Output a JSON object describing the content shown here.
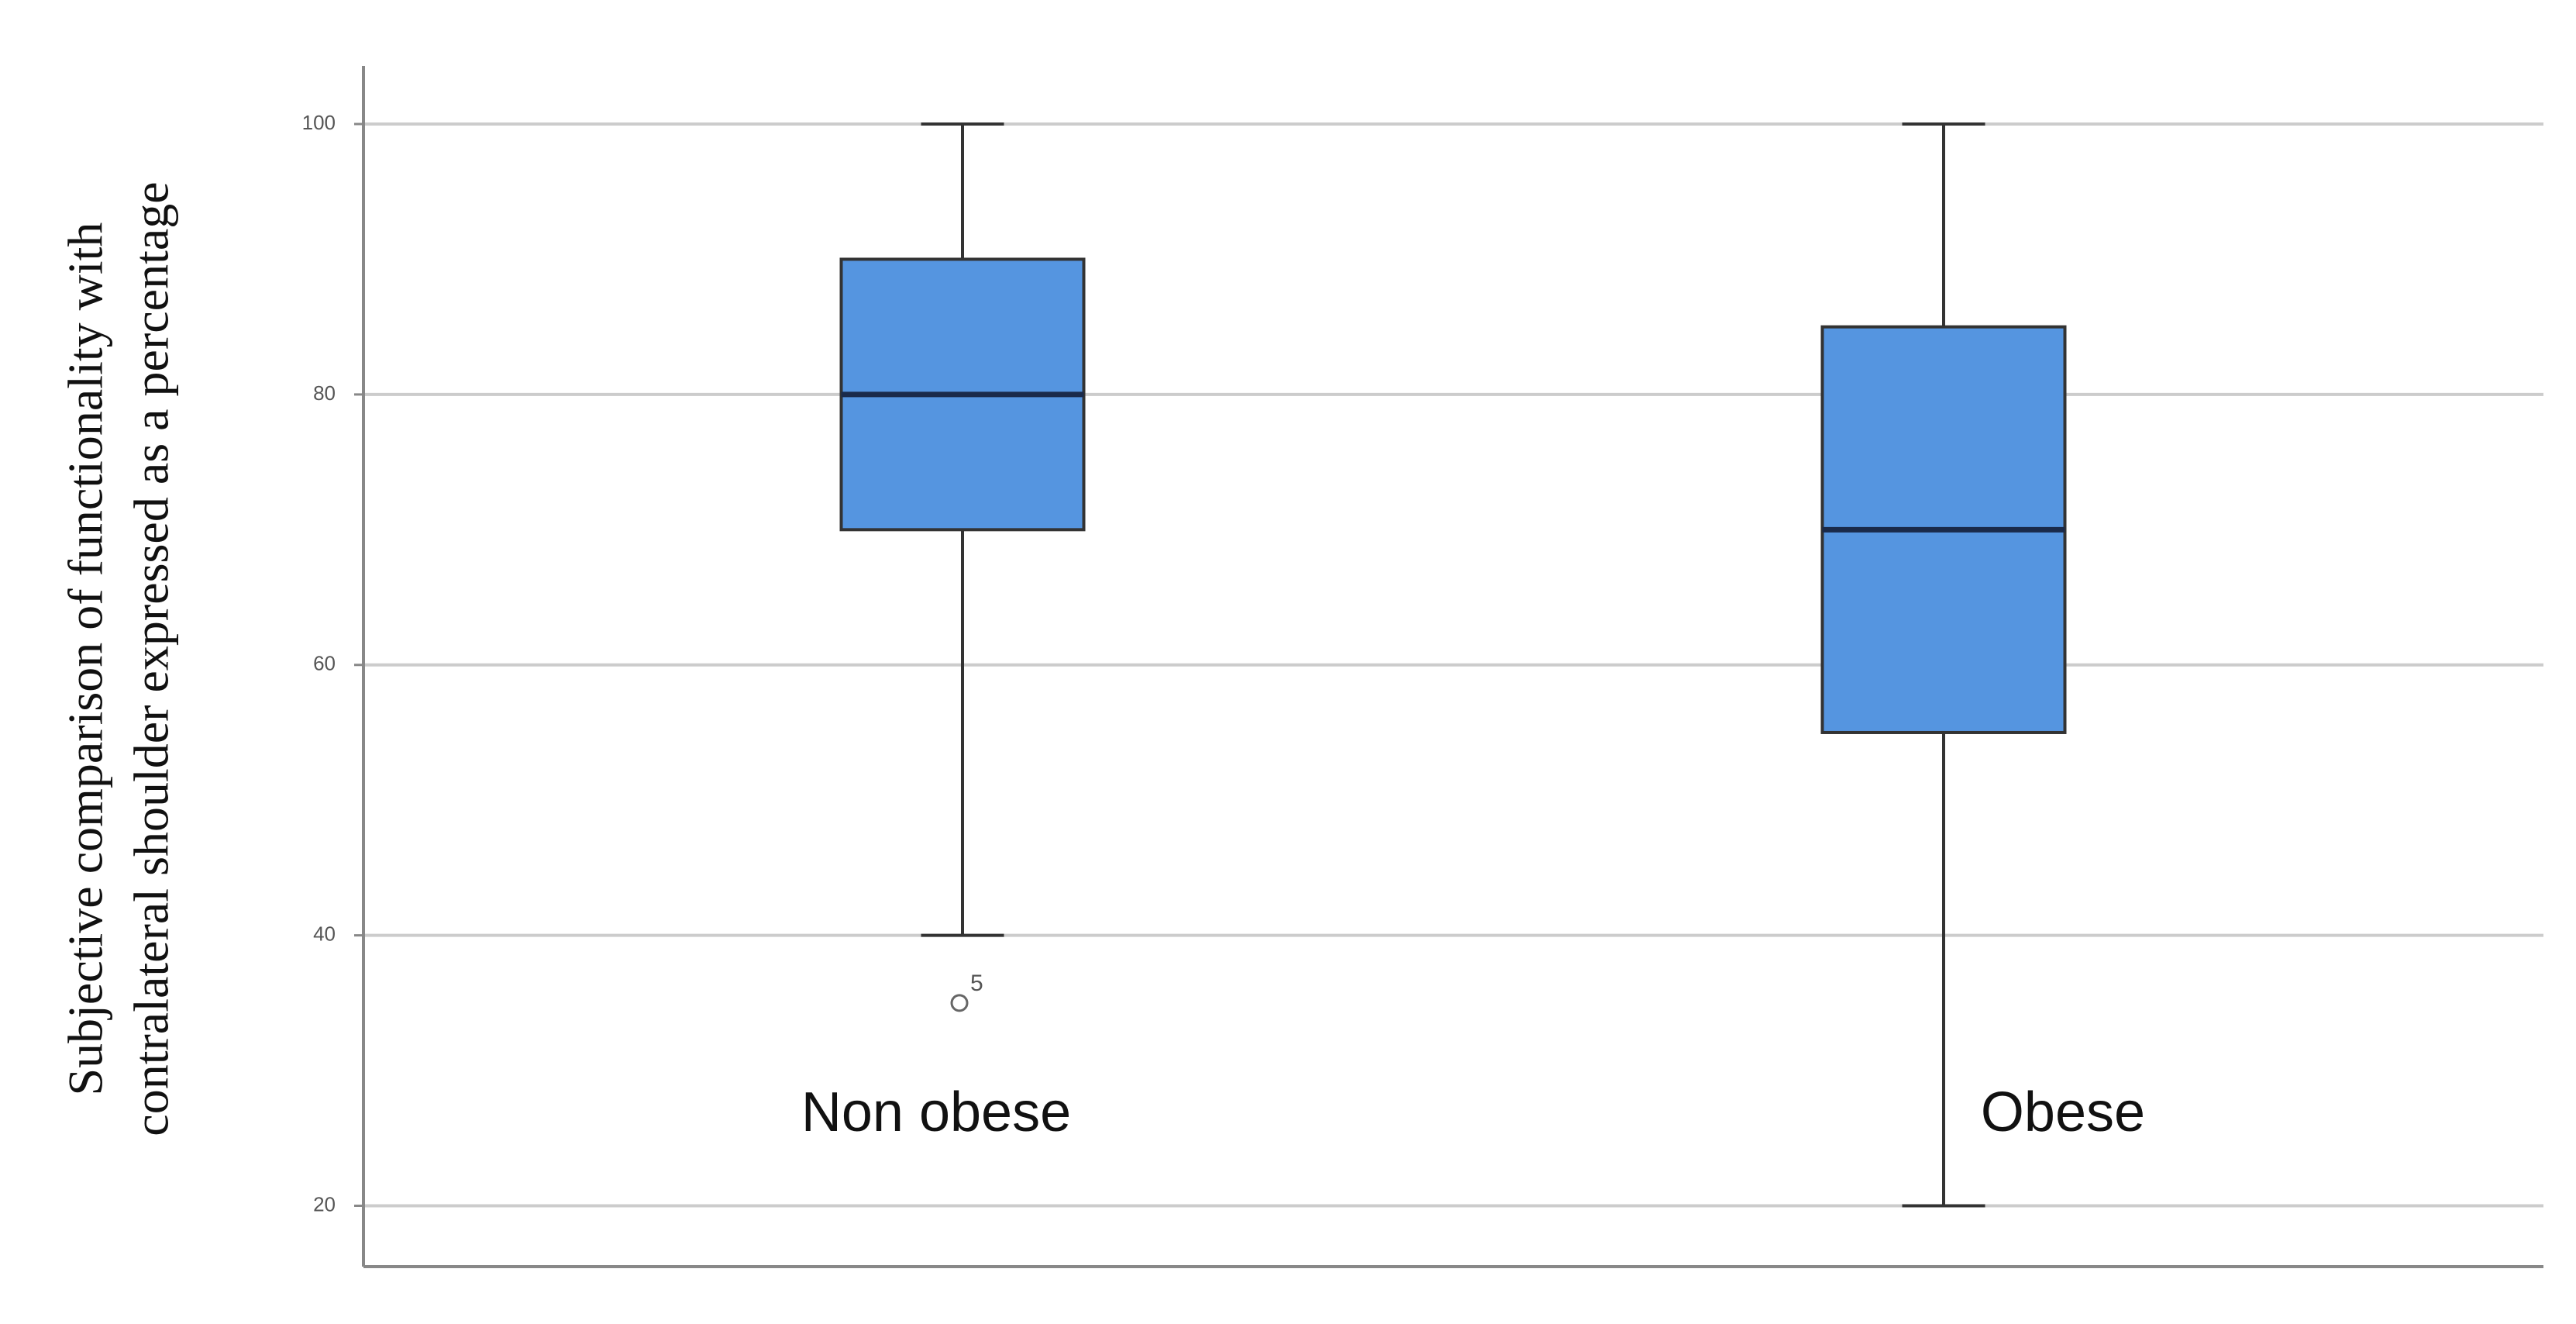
{
  "chart_data": {
    "type": "box",
    "y_label": [
      "Subjective comparison of functionality with",
      "contralateral shoulder expressed as a percentage"
    ],
    "categories": [
      "Non obese",
      "Obese"
    ],
    "boxes": [
      {
        "min": 40,
        "q1": 70,
        "median": 80,
        "q3": 90,
        "max": 100,
        "outliers": [
          {
            "value": 35,
            "label": "5"
          }
        ]
      },
      {
        "min": 20,
        "q1": 55,
        "median": 70,
        "q3": 85,
        "max": 100,
        "outliers": []
      }
    ],
    "color": "#5595e0",
    "median_color": "#1a2a4a",
    "ylim": [
      15.5,
      104.3
    ],
    "yticks": [
      20,
      40,
      60,
      80,
      100
    ],
    "grid": true
  }
}
